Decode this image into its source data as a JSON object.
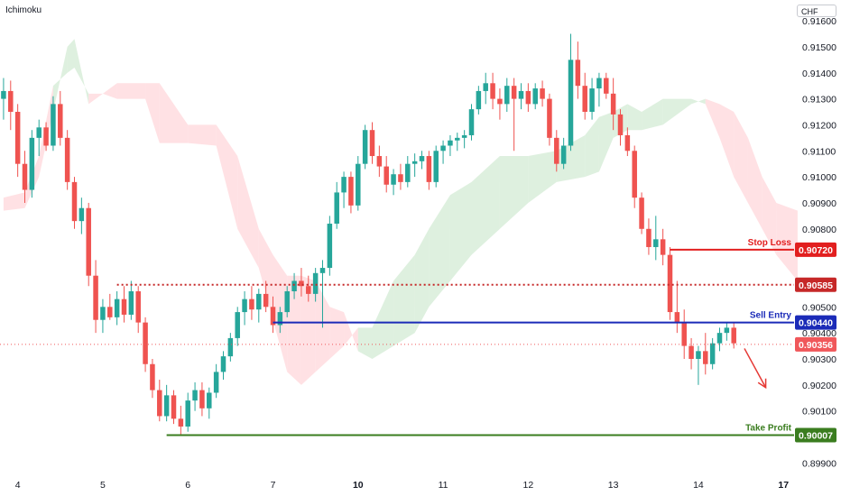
{
  "header": {
    "indicator": "Ichimoku",
    "currency": "CHF"
  },
  "colors": {
    "up": "#26a69a",
    "down": "#ef5350",
    "cloud_bull": "#c8e6c9",
    "cloud_bear": "#ffcdd2",
    "stop": "#e21f1f",
    "entry": "#1b2bb8",
    "resist": "#c62828",
    "target": "#3a7d1f",
    "current": "#f0575a"
  },
  "chart_data": {
    "type": "candlestick",
    "ylim": [
      0.8987,
      0.9168
    ],
    "yticks": [
      "0.91600",
      "0.91500",
      "0.91400",
      "0.91300",
      "0.91200",
      "0.91100",
      "0.91000",
      "0.90900",
      "0.90800",
      "0.90500",
      "0.90400",
      "0.90300",
      "0.90200",
      "0.90100",
      "0.89900"
    ],
    "xticks": [
      {
        "label": "4",
        "bar": 2,
        "bold": false
      },
      {
        "label": "5",
        "bar": 14,
        "bold": false
      },
      {
        "label": "6",
        "bar": 26,
        "bold": false
      },
      {
        "label": "7",
        "bar": 38,
        "bold": false
      },
      {
        "label": "10",
        "bar": 50,
        "bold": true
      },
      {
        "label": "11",
        "bar": 62,
        "bold": false
      },
      {
        "label": "12",
        "bar": 74,
        "bold": false
      },
      {
        "label": "13",
        "bar": 86,
        "bold": false
      },
      {
        "label": "14",
        "bar": 98,
        "bold": false
      },
      {
        "label": "17",
        "bar": 110,
        "bold": true
      }
    ],
    "bars_total": 112,
    "candles": [
      [
        0.913,
        0.9138,
        0.9122,
        0.9133
      ],
      [
        0.9133,
        0.9137,
        0.9118,
        0.9125
      ],
      [
        0.9125,
        0.9128,
        0.91,
        0.9105
      ],
      [
        0.9105,
        0.911,
        0.909,
        0.9095
      ],
      [
        0.9095,
        0.9118,
        0.9092,
        0.9115
      ],
      [
        0.9115,
        0.9122,
        0.9108,
        0.9119
      ],
      [
        0.9119,
        0.9121,
        0.911,
        0.9112
      ],
      [
        0.9112,
        0.9131,
        0.911,
        0.9128
      ],
      [
        0.9128,
        0.9133,
        0.9112,
        0.9115
      ],
      [
        0.9115,
        0.9118,
        0.9095,
        0.9098
      ],
      [
        0.9098,
        0.91,
        0.908,
        0.9083
      ],
      [
        0.9083,
        0.9092,
        0.9078,
        0.9088
      ],
      [
        0.9088,
        0.909,
        0.9058,
        0.9062
      ],
      [
        0.9062,
        0.9068,
        0.904,
        0.9045
      ],
      [
        0.9045,
        0.9053,
        0.904,
        0.905
      ],
      [
        0.905,
        0.9055,
        0.9045,
        0.9046
      ],
      [
        0.9046,
        0.9056,
        0.9043,
        0.9053
      ],
      [
        0.9053,
        0.9058,
        0.9044,
        0.9047
      ],
      [
        0.9047,
        0.906,
        0.9045,
        0.9056
      ],
      [
        0.9056,
        0.9058,
        0.904,
        0.9044
      ],
      [
        0.9044,
        0.9046,
        0.9025,
        0.9028
      ],
      [
        0.9028,
        0.903,
        0.9015,
        0.9018
      ],
      [
        0.9018,
        0.9022,
        0.9006,
        0.9008
      ],
      [
        0.9008,
        0.902,
        0.9006,
        0.9016
      ],
      [
        0.9016,
        0.9018,
        0.9005,
        0.9007
      ],
      [
        0.9007,
        0.9012,
        0.9001,
        0.9004
      ],
      [
        0.9004,
        0.9017,
        0.9002,
        0.9014
      ],
      [
        0.9014,
        0.9021,
        0.901,
        0.9018
      ],
      [
        0.9018,
        0.9021,
        0.9008,
        0.9011
      ],
      [
        0.9011,
        0.9019,
        0.9007,
        0.9017
      ],
      [
        0.9017,
        0.9028,
        0.9015,
        0.9025
      ],
      [
        0.9025,
        0.9033,
        0.9022,
        0.9031
      ],
      [
        0.9031,
        0.904,
        0.9029,
        0.9038
      ],
      [
        0.9038,
        0.905,
        0.9035,
        0.9048
      ],
      [
        0.9048,
        0.9056,
        0.9043,
        0.9053
      ],
      [
        0.9053,
        0.9058,
        0.9045,
        0.9049
      ],
      [
        0.9049,
        0.9057,
        0.9044,
        0.9055
      ],
      [
        0.9055,
        0.906,
        0.9048,
        0.905
      ],
      [
        0.905,
        0.9054,
        0.904,
        0.9043
      ],
      [
        0.9043,
        0.905,
        0.904,
        0.9048
      ],
      [
        0.9048,
        0.9058,
        0.9046,
        0.9056
      ],
      [
        0.9056,
        0.9063,
        0.9053,
        0.906
      ],
      [
        0.906,
        0.9065,
        0.9054,
        0.9058
      ],
      [
        0.9058,
        0.9062,
        0.9052,
        0.9055
      ],
      [
        0.9055,
        0.9065,
        0.9052,
        0.9063
      ],
      [
        0.9063,
        0.9068,
        0.9042,
        0.9065
      ],
      [
        0.9065,
        0.9085,
        0.9062,
        0.9082
      ],
      [
        0.9082,
        0.9098,
        0.908,
        0.9094
      ],
      [
        0.9094,
        0.9102,
        0.9088,
        0.91
      ],
      [
        0.91,
        0.9102,
        0.9086,
        0.9089
      ],
      [
        0.9089,
        0.9108,
        0.9087,
        0.9105
      ],
      [
        0.9105,
        0.912,
        0.9103,
        0.9118
      ],
      [
        0.9118,
        0.9121,
        0.9105,
        0.9108
      ],
      [
        0.9108,
        0.9112,
        0.91,
        0.9104
      ],
      [
        0.9104,
        0.9108,
        0.9094,
        0.9097
      ],
      [
        0.9097,
        0.9103,
        0.9093,
        0.9101
      ],
      [
        0.9101,
        0.9105,
        0.9095,
        0.9098
      ],
      [
        0.9098,
        0.9108,
        0.9096,
        0.9105
      ],
      [
        0.9105,
        0.9109,
        0.91,
        0.9106
      ],
      [
        0.9106,
        0.911,
        0.9103,
        0.9108
      ],
      [
        0.9108,
        0.911,
        0.9095,
        0.9098
      ],
      [
        0.9098,
        0.9112,
        0.9096,
        0.911
      ],
      [
        0.911,
        0.9114,
        0.9105,
        0.9112
      ],
      [
        0.9112,
        0.9116,
        0.9108,
        0.9114
      ],
      [
        0.9114,
        0.9117,
        0.911,
        0.9115
      ],
      [
        0.9115,
        0.9118,
        0.9111,
        0.9116
      ],
      [
        0.9116,
        0.9128,
        0.9114,
        0.9126
      ],
      [
        0.9126,
        0.9135,
        0.9124,
        0.9133
      ],
      [
        0.9133,
        0.914,
        0.9128,
        0.9136
      ],
      [
        0.9136,
        0.914,
        0.9126,
        0.913
      ],
      [
        0.913,
        0.9134,
        0.9122,
        0.9128
      ],
      [
        0.9128,
        0.9138,
        0.9125,
        0.9135
      ],
      [
        0.9135,
        0.9138,
        0.911,
        0.913
      ],
      [
        0.913,
        0.9136,
        0.9126,
        0.9133
      ],
      [
        0.9133,
        0.9136,
        0.9125,
        0.9128
      ],
      [
        0.9128,
        0.9136,
        0.9126,
        0.9134
      ],
      [
        0.9134,
        0.9137,
        0.9127,
        0.913
      ],
      [
        0.913,
        0.9132,
        0.9112,
        0.9115
      ],
      [
        0.9115,
        0.9118,
        0.9102,
        0.9105
      ],
      [
        0.9105,
        0.9115,
        0.9103,
        0.9112
      ],
      [
        0.9112,
        0.9155,
        0.911,
        0.9145
      ],
      [
        0.9145,
        0.9152,
        0.913,
        0.9135
      ],
      [
        0.9135,
        0.914,
        0.9122,
        0.9125
      ],
      [
        0.9125,
        0.9138,
        0.9122,
        0.9134
      ],
      [
        0.9134,
        0.914,
        0.9127,
        0.9138
      ],
      [
        0.9138,
        0.914,
        0.913,
        0.9132
      ],
      [
        0.9132,
        0.9138,
        0.9118,
        0.9124
      ],
      [
        0.9124,
        0.9126,
        0.9112,
        0.9116
      ],
      [
        0.9116,
        0.9119,
        0.9108,
        0.911
      ],
      [
        0.911,
        0.9112,
        0.9088,
        0.9092
      ],
      [
        0.9092,
        0.9094,
        0.9078,
        0.908
      ],
      [
        0.908,
        0.9084,
        0.907,
        0.9073
      ],
      [
        0.9073,
        0.9085,
        0.9068,
        0.9076
      ],
      [
        0.9076,
        0.908,
        0.9066,
        0.907
      ],
      [
        0.907,
        0.9073,
        0.9045,
        0.9048
      ],
      [
        0.9048,
        0.906,
        0.904,
        0.9044
      ],
      [
        0.9044,
        0.9049,
        0.903,
        0.9035
      ],
      [
        0.9035,
        0.9038,
        0.9026,
        0.903
      ],
      [
        0.903,
        0.9035,
        0.902,
        0.9033
      ],
      [
        0.9033,
        0.904,
        0.9024,
        0.9028
      ],
      [
        0.9028,
        0.9038,
        0.9026,
        0.9036
      ],
      [
        0.9036,
        0.9042,
        0.9033,
        0.904
      ],
      [
        0.904,
        0.9044,
        0.9037,
        0.9042
      ],
      [
        0.9042,
        0.9044,
        0.9034,
        0.9036
      ]
    ],
    "cloud": [
      {
        "bar": 0,
        "a": 0.9087,
        "b": 0.9092
      },
      {
        "bar": 3,
        "a": 0.9088,
        "b": 0.9094
      },
      {
        "bar": 5,
        "a": 0.91,
        "b": 0.9108
      },
      {
        "bar": 7,
        "a": 0.9125,
        "b": 0.9135
      },
      {
        "bar": 9,
        "a": 0.915,
        "b": 0.914
      },
      {
        "bar": 10,
        "a": 0.9153,
        "b": 0.9142
      },
      {
        "bar": 12,
        "a": 0.9128,
        "b": 0.9132
      },
      {
        "bar": 14,
        "a": 0.9132,
        "b": 0.9132
      },
      {
        "bar": 16,
        "a": 0.913,
        "b": 0.9136
      },
      {
        "bar": 20,
        "a": 0.913,
        "b": 0.9136
      },
      {
        "bar": 22,
        "a": 0.9113,
        "b": 0.9136
      },
      {
        "bar": 26,
        "a": 0.9113,
        "b": 0.912
      },
      {
        "bar": 30,
        "a": 0.9112,
        "b": 0.912
      },
      {
        "bar": 33,
        "a": 0.908,
        "b": 0.9108
      },
      {
        "bar": 36,
        "a": 0.9065,
        "b": 0.908
      },
      {
        "bar": 38,
        "a": 0.9045,
        "b": 0.907
      },
      {
        "bar": 40,
        "a": 0.9025,
        "b": 0.9062
      },
      {
        "bar": 42,
        "a": 0.902,
        "b": 0.9062
      },
      {
        "bar": 44,
        "a": 0.9025,
        "b": 0.906
      },
      {
        "bar": 46,
        "a": 0.903,
        "b": 0.905
      },
      {
        "bar": 48,
        "a": 0.9035,
        "b": 0.9048
      },
      {
        "bar": 50,
        "a": 0.9042,
        "b": 0.9033
      },
      {
        "bar": 52,
        "a": 0.9042,
        "b": 0.903
      },
      {
        "bar": 55,
        "a": 0.906,
        "b": 0.9035
      },
      {
        "bar": 58,
        "a": 0.907,
        "b": 0.904
      },
      {
        "bar": 60,
        "a": 0.908,
        "b": 0.905
      },
      {
        "bar": 63,
        "a": 0.9093,
        "b": 0.906
      },
      {
        "bar": 66,
        "a": 0.9098,
        "b": 0.907
      },
      {
        "bar": 70,
        "a": 0.9108,
        "b": 0.908
      },
      {
        "bar": 74,
        "a": 0.9108,
        "b": 0.909
      },
      {
        "bar": 78,
        "a": 0.911,
        "b": 0.9098
      },
      {
        "bar": 82,
        "a": 0.9116,
        "b": 0.91
      },
      {
        "bar": 84,
        "a": 0.9123,
        "b": 0.9102
      },
      {
        "bar": 86,
        "a": 0.9125,
        "b": 0.9115
      },
      {
        "bar": 88,
        "a": 0.9128,
        "b": 0.9118
      },
      {
        "bar": 90,
        "a": 0.9125,
        "b": 0.9118
      },
      {
        "bar": 93,
        "a": 0.913,
        "b": 0.912
      },
      {
        "bar": 97,
        "a": 0.913,
        "b": 0.9128
      },
      {
        "bar": 99,
        "a": 0.9128,
        "b": 0.913
      },
      {
        "bar": 101,
        "a": 0.9115,
        "b": 0.9128
      },
      {
        "bar": 103,
        "a": 0.91,
        "b": 0.9125
      },
      {
        "bar": 105,
        "a": 0.909,
        "b": 0.9115
      },
      {
        "bar": 107,
        "a": 0.908,
        "b": 0.91
      },
      {
        "bar": 109,
        "a": 0.907,
        "b": 0.909
      },
      {
        "bar": 112,
        "a": 0.906,
        "b": 0.9087
      }
    ],
    "levels": [
      {
        "name": "stop",
        "label": "Stop Loss",
        "value": 0.9072,
        "value_text": "0.90720",
        "style": "solid",
        "from_bar": 94,
        "color": "#e21f1f"
      },
      {
        "name": "resistance",
        "label": "",
        "value": 0.90585,
        "value_text": "0.90585",
        "style": "dotted",
        "from_bar": 16,
        "color": "#c62828"
      },
      {
        "name": "entry",
        "label": "Sell Entry",
        "value": 0.9044,
        "value_text": "0.90440",
        "style": "solid",
        "from_bar": 38,
        "color": "#1b2bb8"
      },
      {
        "name": "target",
        "label": "Take Profit",
        "value": 0.90007,
        "value_text": "0.90007",
        "style": "solid",
        "from_bar": 23,
        "color": "#3a7d1f"
      }
    ],
    "current_price": {
      "value": 0.90356,
      "value_text": "0.90356"
    },
    "arrow": {
      "from_bar": 104.5,
      "from_y": 0.9034,
      "to_bar": 107.5,
      "to_y": 0.9019
    }
  }
}
